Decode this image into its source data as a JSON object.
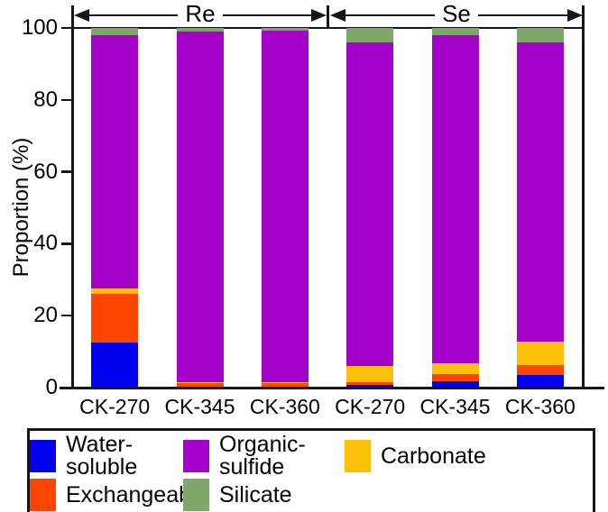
{
  "figure": {
    "y_axis_label": "Proportion (%)"
  },
  "chart_data": {
    "type": "bar",
    "stacked": true,
    "title": "",
    "xlabel": "",
    "ylabel": "Proportion (%)",
    "ylim": [
      0,
      100
    ],
    "yticks": [
      0,
      20,
      40,
      60,
      80,
      100
    ],
    "grid": false,
    "group_labels": [
      "Re",
      "Se"
    ],
    "categories": [
      "CK-270",
      "CK-345",
      "CK-360",
      "CK-270",
      "CK-345",
      "CK-360"
    ],
    "category_groups": [
      "Re",
      "Re",
      "Re",
      "Se",
      "Se",
      "Se"
    ],
    "series": [
      {
        "name": "Water-soluble",
        "color": "#0000F0",
        "values": [
          12.5,
          0.2,
          0.2,
          0.8,
          1.7,
          3.6
        ]
      },
      {
        "name": "Exchangeable",
        "color": "#FF4500",
        "values": [
          13.5,
          1.0,
          1.0,
          0.7,
          2.1,
          2.7
        ]
      },
      {
        "name": "Carbonate",
        "color": "#FCC00A",
        "values": [
          1.5,
          0.3,
          0.3,
          4.5,
          2.9,
          6.6
        ]
      },
      {
        "name": "Organic-sulfide",
        "color": "#A402C8",
        "values": [
          70.5,
          97.5,
          97.7,
          90.0,
          91.3,
          83.1
        ]
      },
      {
        "name": "Silicate",
        "color": "#7FA76A",
        "values": [
          2.0,
          1.0,
          0.8,
          4.0,
          2.0,
          4.0
        ]
      }
    ],
    "legend": {
      "position": "bottom",
      "rows": [
        [
          "Water-soluble",
          "Organic-sulfide",
          "Carbonate"
        ],
        [
          "Exchangeable",
          "Silicate"
        ]
      ]
    }
  }
}
